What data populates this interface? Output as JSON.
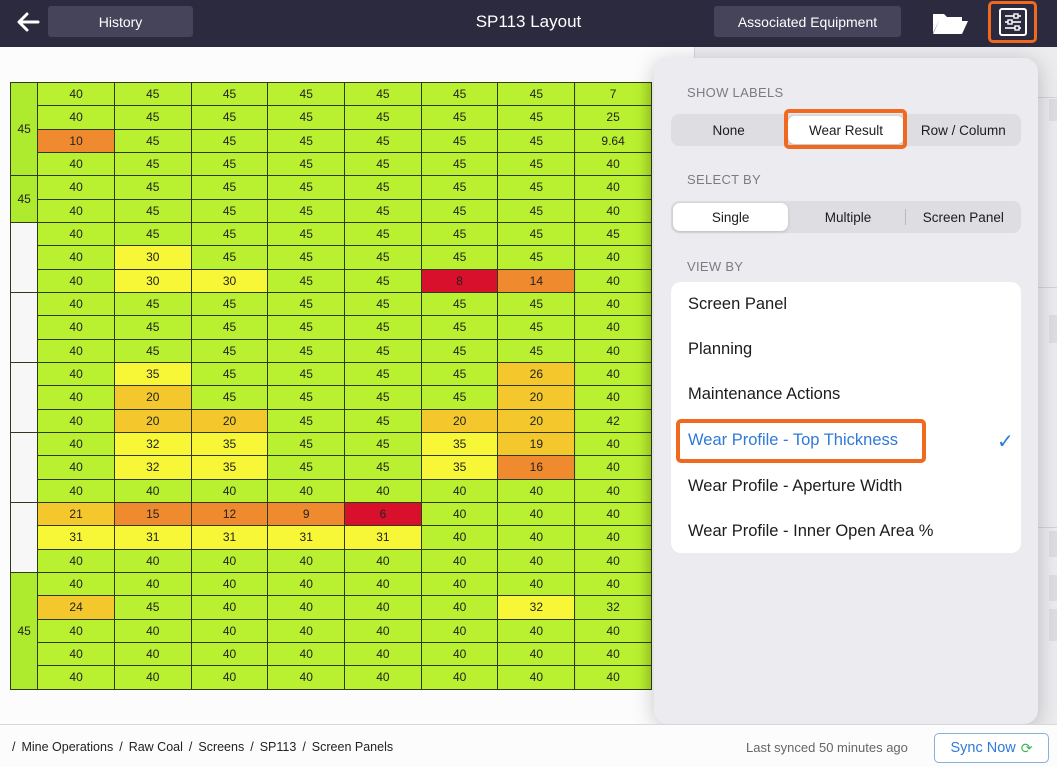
{
  "header": {
    "history_label": "History",
    "title": "SP113 Layout",
    "associated_label": "Associated Equipment",
    "back_icon": "arrow-left-icon",
    "folder_icon": "folder-open-icon",
    "settings_icon": "sliders-icon"
  },
  "grid": {
    "rows": [
      {
        "label": "45",
        "cells": [
          "40",
          "45",
          "45",
          "45",
          "45",
          "45",
          "45",
          "7"
        ],
        "levels": [
          0,
          0,
          0,
          0,
          0,
          0,
          0,
          5
        ]
      },
      {
        "label": "",
        "cells": [
          "40",
          "45",
          "45",
          "45",
          "45",
          "45",
          "45",
          "25"
        ],
        "levels": [
          0,
          0,
          0,
          0,
          0,
          0,
          0,
          2
        ]
      },
      {
        "label": "",
        "cells": [
          "10",
          "45",
          "45",
          "45",
          "45",
          "45",
          "45",
          "9.64"
        ],
        "levels": [
          3,
          0,
          0,
          0,
          0,
          0,
          0,
          3
        ]
      },
      {
        "label": "",
        "cells": [
          "40",
          "45",
          "45",
          "45",
          "45",
          "45",
          "45",
          "40"
        ],
        "levels": [
          0,
          0,
          0,
          0,
          0,
          0,
          0,
          0
        ]
      },
      {
        "label": "45",
        "cells": [
          "40",
          "45",
          "45",
          "45",
          "45",
          "45",
          "45",
          "40"
        ],
        "levels": [
          0,
          0,
          0,
          0,
          0,
          0,
          0,
          0
        ]
      },
      {
        "label": "",
        "cells": [
          "40",
          "45",
          "45",
          "45",
          "45",
          "45",
          "45",
          "40"
        ],
        "levels": [
          0,
          0,
          0,
          0,
          0,
          0,
          0,
          0
        ]
      },
      {
        "label": "",
        "cells": [
          "40",
          "45",
          "45",
          "45",
          "45",
          "45",
          "45",
          "45"
        ],
        "levels": [
          0,
          0,
          0,
          0,
          0,
          0,
          0,
          0
        ]
      },
      {
        "label": "",
        "cells": [
          "40",
          "30",
          "45",
          "45",
          "45",
          "45",
          "45",
          "40"
        ],
        "levels": [
          0,
          1,
          0,
          0,
          0,
          0,
          0,
          0
        ]
      },
      {
        "label": "",
        "cells": [
          "40",
          "30",
          "30",
          "45",
          "45",
          "8",
          "14",
          "40"
        ],
        "levels": [
          0,
          1,
          1,
          0,
          0,
          5,
          3,
          0
        ]
      },
      {
        "label": "",
        "cells": [
          "40",
          "45",
          "45",
          "45",
          "45",
          "45",
          "45",
          "40"
        ],
        "levels": [
          0,
          0,
          0,
          0,
          0,
          0,
          0,
          0
        ]
      },
      {
        "label": "",
        "cells": [
          "40",
          "45",
          "45",
          "45",
          "45",
          "45",
          "45",
          "40"
        ],
        "levels": [
          0,
          0,
          0,
          0,
          0,
          0,
          0,
          0
        ]
      },
      {
        "label": "",
        "cells": [
          "40",
          "45",
          "45",
          "45",
          "45",
          "45",
          "45",
          "40"
        ],
        "levels": [
          0,
          0,
          0,
          0,
          0,
          0,
          0,
          0
        ]
      },
      {
        "label": "",
        "cells": [
          "40",
          "35",
          "45",
          "45",
          "45",
          "45",
          "26",
          "40"
        ],
        "levels": [
          0,
          1,
          0,
          0,
          0,
          0,
          2,
          0
        ]
      },
      {
        "label": "",
        "cells": [
          "40",
          "20",
          "45",
          "45",
          "45",
          "45",
          "20",
          "40"
        ],
        "levels": [
          0,
          2,
          0,
          0,
          0,
          0,
          2,
          0
        ]
      },
      {
        "label": "",
        "cells": [
          "40",
          "20",
          "20",
          "45",
          "45",
          "20",
          "20",
          "42"
        ],
        "levels": [
          0,
          2,
          2,
          0,
          0,
          2,
          2,
          0
        ]
      },
      {
        "label": "",
        "cells": [
          "40",
          "32",
          "35",
          "45",
          "45",
          "35",
          "19",
          "40"
        ],
        "levels": [
          0,
          1,
          1,
          0,
          0,
          1,
          2,
          0
        ]
      },
      {
        "label": "",
        "cells": [
          "40",
          "32",
          "35",
          "45",
          "45",
          "35",
          "16",
          "40"
        ],
        "levels": [
          0,
          1,
          1,
          0,
          0,
          1,
          3,
          0
        ]
      },
      {
        "label": "",
        "cells": [
          "40",
          "40",
          "40",
          "40",
          "40",
          "40",
          "40",
          "40"
        ],
        "levels": [
          0,
          0,
          0,
          0,
          0,
          0,
          0,
          0
        ]
      },
      {
        "label": "",
        "cells": [
          "21",
          "15",
          "12",
          "9",
          "6",
          "40",
          "40",
          "40"
        ],
        "levels": [
          2,
          3,
          3,
          3,
          5,
          0,
          0,
          0
        ]
      },
      {
        "label": "",
        "cells": [
          "31",
          "31",
          "31",
          "31",
          "31",
          "40",
          "40",
          "40"
        ],
        "levels": [
          1,
          1,
          1,
          1,
          1,
          0,
          0,
          0
        ]
      },
      {
        "label": "",
        "cells": [
          "40",
          "40",
          "40",
          "40",
          "40",
          "40",
          "40",
          "40"
        ],
        "levels": [
          0,
          0,
          0,
          0,
          0,
          0,
          0,
          0
        ]
      },
      {
        "label": "",
        "cells": [
          "40",
          "40",
          "40",
          "40",
          "40",
          "40",
          "40",
          "40"
        ],
        "levels": [
          0,
          0,
          0,
          0,
          0,
          0,
          0,
          0
        ]
      },
      {
        "label": "",
        "cells": [
          "24",
          "45",
          "40",
          "40",
          "40",
          "40",
          "32",
          "32"
        ],
        "levels": [
          2,
          0,
          0,
          0,
          0,
          0,
          1,
          1
        ]
      },
      {
        "label": "45",
        "cells": [
          "40",
          "40",
          "40",
          "40",
          "40",
          "40",
          "40",
          "40"
        ],
        "levels": [
          0,
          0,
          0,
          0,
          0,
          0,
          0,
          0
        ]
      },
      {
        "label": "",
        "cells": [
          "40",
          "40",
          "40",
          "40",
          "40",
          "40",
          "40",
          "40"
        ],
        "levels": [
          0,
          0,
          0,
          0,
          0,
          0,
          0,
          0
        ]
      },
      {
        "label": "",
        "cells": [
          "40",
          "40",
          "40",
          "40",
          "40",
          "40",
          "40",
          "40"
        ],
        "levels": [
          0,
          0,
          0,
          0,
          0,
          0,
          0,
          0
        ]
      }
    ],
    "group_labels": [
      {
        "start": 0,
        "span": 4,
        "text": "45",
        "blank": false
      },
      {
        "start": 4,
        "span": 2,
        "text": "45",
        "blank": false
      },
      {
        "start": 6,
        "span": 3,
        "text": "",
        "blank": true
      },
      {
        "start": 9,
        "span": 3,
        "text": "",
        "blank": true
      },
      {
        "start": 12,
        "span": 3,
        "text": "",
        "blank": true
      },
      {
        "start": 15,
        "span": 3,
        "text": "",
        "blank": true
      },
      {
        "start": 18,
        "span": 3,
        "text": "",
        "blank": true
      },
      {
        "start": 21,
        "span": 5,
        "text": "45",
        "blank": false
      }
    ]
  },
  "popover": {
    "show_labels": {
      "title": "SHOW LABELS",
      "options": [
        "None",
        "Wear Result",
        "Row / Column"
      ],
      "selected": "Wear Result"
    },
    "select_by": {
      "title": "SELECT BY",
      "options": [
        "Single",
        "Multiple",
        "Screen Panel"
      ],
      "selected": "Single"
    },
    "view_by": {
      "title": "VIEW BY",
      "options": [
        "Screen Panel",
        "Planning",
        "Maintenance Actions",
        "Wear Profile - Top Thickness",
        "Wear Profile - Aperture Width",
        "Wear Profile - Inner Open Area %"
      ],
      "selected": "Wear Profile - Top Thickness",
      "check_icon": "checkmark-icon"
    },
    "highlight_color": "#f0691f",
    "accent_color": "#2f7ad8"
  },
  "footer": {
    "breadcrumbs": [
      "Mine Operations",
      "Raw Coal",
      "Screens",
      "SP113",
      "Screen Panels"
    ],
    "synced_text": "Last synced 50 minutes ago",
    "sync_label": "Sync Now",
    "sync_icon": "refresh-icon"
  },
  "colors": {
    "ok": "#b9f02f",
    "level1": "#f7f737",
    "level2": "#f4c82d",
    "level3": "#f08a2e",
    "level5": "#d8102b"
  }
}
